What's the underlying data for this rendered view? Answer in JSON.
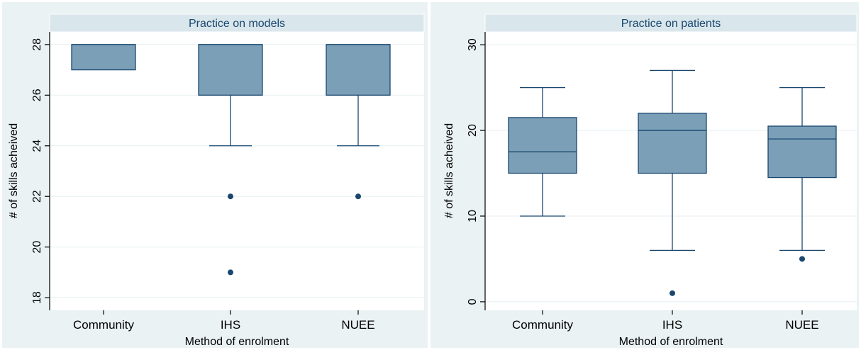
{
  "chart_data": [
    {
      "type": "box",
      "title": "Practice on models",
      "xlabel": "Method of enrolment",
      "ylabel": "# of skills acheived",
      "ylim": [
        17.5,
        28.5
      ],
      "yticks": [
        18,
        20,
        22,
        24,
        26,
        28
      ],
      "yticks_labels": [
        "18",
        "20",
        "22",
        "24",
        "26",
        "28"
      ],
      "grid": true,
      "categories": [
        "Community",
        "IHS",
        "NUEE"
      ],
      "boxes": [
        {
          "category": "Community",
          "min": 27,
          "q1": 27,
          "median": 28,
          "q3": 28,
          "max": 28,
          "outliers": []
        },
        {
          "category": "IHS",
          "min": 24,
          "q1": 26,
          "median": 28,
          "q3": 28,
          "max": 28,
          "outliers": [
            22,
            19
          ]
        },
        {
          "category": "NUEE",
          "min": 24,
          "q1": 26,
          "median": 28,
          "q3": 28,
          "max": 28,
          "outliers": [
            22
          ]
        }
      ],
      "colors": {
        "box_fill": "#7b9fb7",
        "box_stroke": "#1a476f",
        "background": "#eaf2f3",
        "title_strip": "#d9e6eb"
      }
    },
    {
      "type": "box",
      "title": "Practice on patients",
      "xlabel": "Method of enrolment",
      "ylabel": "# of skills acheived",
      "ylim": [
        -1,
        31.5
      ],
      "yticks": [
        0,
        10,
        20,
        30
      ],
      "yticks_labels": [
        "0",
        "10",
        "20",
        "30"
      ],
      "grid": true,
      "categories": [
        "Community",
        "IHS",
        "NUEE"
      ],
      "boxes": [
        {
          "category": "Community",
          "min": 10,
          "q1": 15,
          "median": 17.5,
          "q3": 21.5,
          "max": 25,
          "outliers": []
        },
        {
          "category": "IHS",
          "min": 6,
          "q1": 15,
          "median": 20,
          "q3": 22,
          "max": 27,
          "outliers": [
            1
          ]
        },
        {
          "category": "NUEE",
          "min": 6,
          "q1": 14.5,
          "median": 19,
          "q3": 20.5,
          "max": 25,
          "outliers": [
            5
          ]
        }
      ],
      "colors": {
        "box_fill": "#7b9fb7",
        "box_stroke": "#1a476f",
        "background": "#eaf2f3",
        "title_strip": "#d9e6eb"
      }
    }
  ]
}
